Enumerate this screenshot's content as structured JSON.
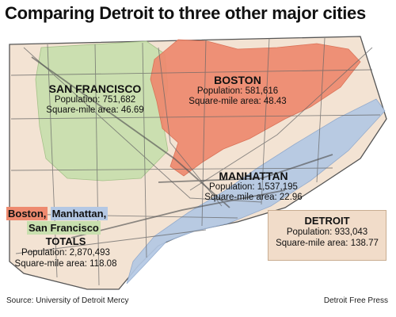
{
  "title": "Comparing Detroit to three other major cities",
  "cities": {
    "san_francisco": {
      "name": "SAN FRANCISCO",
      "population_label": "Population:",
      "population": "751,682",
      "area_label": "Square-mile area:",
      "area": "46.69",
      "color": "#c8dfae"
    },
    "boston": {
      "name": "BOSTON",
      "population_label": "Population:",
      "population": "581,616",
      "area_label": "Square-mile area:",
      "area": "48.43",
      "color": "#ee8a6f"
    },
    "manhattan": {
      "name": "MANHATTAN",
      "population_label": "Population:",
      "population": "1,537,195",
      "area_label": "Square-mile area:",
      "area": "22.96",
      "color": "#b4c8e4"
    }
  },
  "legend": {
    "boston": "Boston,",
    "manhattan": "Manhattan,",
    "san_francisco": "San Francisco",
    "totals_heading": "TOTALS",
    "population_label": "Population:",
    "population": "2,870,493",
    "area_label": "Square-mile area:",
    "area": "118.08"
  },
  "detroit": {
    "name": "DETROIT",
    "population_label": "Population:",
    "population": "933,043",
    "area_label": "Square-mile area:",
    "area": "138.77",
    "box_color": "#f1dcc9"
  },
  "detroit_outline_color": "#f3e3d3",
  "source": "Source: University of Detroit Mercy",
  "credit": "Detroit Free Press"
}
